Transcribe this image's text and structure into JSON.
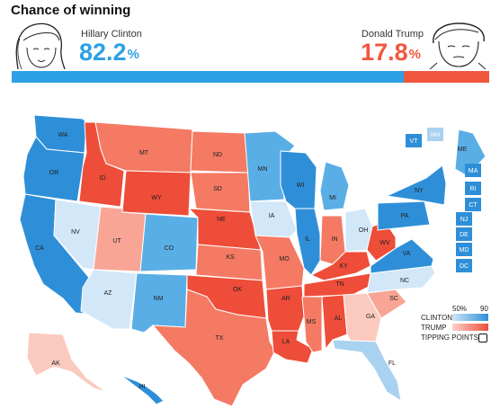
{
  "title": "Chance of winning",
  "candidates": {
    "clinton": {
      "name": "Hillary Clinton",
      "pct": "82.2",
      "pct_sign": "%",
      "win_probability": 82.2,
      "color": "#2ea0e5"
    },
    "trump": {
      "name": "Donald Trump",
      "pct": "17.8",
      "pct_sign": "%",
      "win_probability": 17.8,
      "color": "#f1573e"
    }
  },
  "legend": {
    "tick_low": "50%",
    "tick_high": "90",
    "clinton_label": "CLINTON",
    "trump_label": "TRUMP",
    "tipping_label": "TIPPING POINTS"
  },
  "colors": {
    "clinton_strong": "#2e8fd8",
    "clinton_mid": "#5aaee6",
    "clinton_light": "#a9d1f0",
    "clinton_pale": "#d2e7f8",
    "trump_strong": "#ee4d39",
    "trump_mid": "#f47a63",
    "trump_light": "#f8a595",
    "trump_pale": "#fbcabf"
  },
  "states": [
    {
      "abbr": "WA",
      "lean": "clinton_strong"
    },
    {
      "abbr": "OR",
      "lean": "clinton_strong"
    },
    {
      "abbr": "CA",
      "lean": "clinton_strong"
    },
    {
      "abbr": "NV",
      "lean": "clinton_pale"
    },
    {
      "abbr": "ID",
      "lean": "trump_strong"
    },
    {
      "abbr": "MT",
      "lean": "trump_mid"
    },
    {
      "abbr": "WY",
      "lean": "trump_strong"
    },
    {
      "abbr": "UT",
      "lean": "trump_light"
    },
    {
      "abbr": "AZ",
      "lean": "clinton_pale"
    },
    {
      "abbr": "CO",
      "lean": "clinton_mid"
    },
    {
      "abbr": "NM",
      "lean": "clinton_mid"
    },
    {
      "abbr": "ND",
      "lean": "trump_mid"
    },
    {
      "abbr": "SD",
      "lean": "trump_mid"
    },
    {
      "abbr": "NE",
      "lean": "trump_strong"
    },
    {
      "abbr": "KS",
      "lean": "trump_mid"
    },
    {
      "abbr": "OK",
      "lean": "trump_strong"
    },
    {
      "abbr": "TX",
      "lean": "trump_mid"
    },
    {
      "abbr": "MN",
      "lean": "clinton_mid"
    },
    {
      "abbr": "IA",
      "lean": "clinton_pale"
    },
    {
      "abbr": "MO",
      "lean": "trump_mid"
    },
    {
      "abbr": "AR",
      "lean": "trump_strong"
    },
    {
      "abbr": "LA",
      "lean": "trump_strong"
    },
    {
      "abbr": "WI",
      "lean": "clinton_strong"
    },
    {
      "abbr": "IL",
      "lean": "clinton_strong"
    },
    {
      "abbr": "MI",
      "lean": "clinton_mid"
    },
    {
      "abbr": "IN",
      "lean": "trump_mid"
    },
    {
      "abbr": "OH",
      "lean": "clinton_pale"
    },
    {
      "abbr": "KY",
      "lean": "trump_strong"
    },
    {
      "abbr": "TN",
      "lean": "trump_strong"
    },
    {
      "abbr": "MS",
      "lean": "trump_mid"
    },
    {
      "abbr": "AL",
      "lean": "trump_strong"
    },
    {
      "abbr": "GA",
      "lean": "trump_pale"
    },
    {
      "abbr": "FL",
      "lean": "clinton_light"
    },
    {
      "abbr": "SC",
      "lean": "trump_light"
    },
    {
      "abbr": "NC",
      "lean": "clinton_pale"
    },
    {
      "abbr": "VA",
      "lean": "clinton_strong"
    },
    {
      "abbr": "WV",
      "lean": "trump_strong"
    },
    {
      "abbr": "PA",
      "lean": "clinton_strong"
    },
    {
      "abbr": "NY",
      "lean": "clinton_strong"
    },
    {
      "abbr": "ME",
      "lean": "clinton_mid"
    },
    {
      "abbr": "AK",
      "lean": "trump_pale"
    },
    {
      "abbr": "HI",
      "lean": "clinton_strong"
    },
    {
      "abbr": "VT",
      "lean": "clinton_strong"
    },
    {
      "abbr": "NH",
      "lean": "clinton_light"
    },
    {
      "abbr": "MA",
      "lean": "clinton_strong"
    },
    {
      "abbr": "RI",
      "lean": "clinton_strong"
    },
    {
      "abbr": "CT",
      "lean": "clinton_strong"
    },
    {
      "abbr": "NJ",
      "lean": "clinton_strong"
    },
    {
      "abbr": "DE",
      "lean": "clinton_strong"
    },
    {
      "abbr": "MD",
      "lean": "clinton_strong"
    },
    {
      "abbr": "DC",
      "lean": "clinton_strong"
    }
  ]
}
